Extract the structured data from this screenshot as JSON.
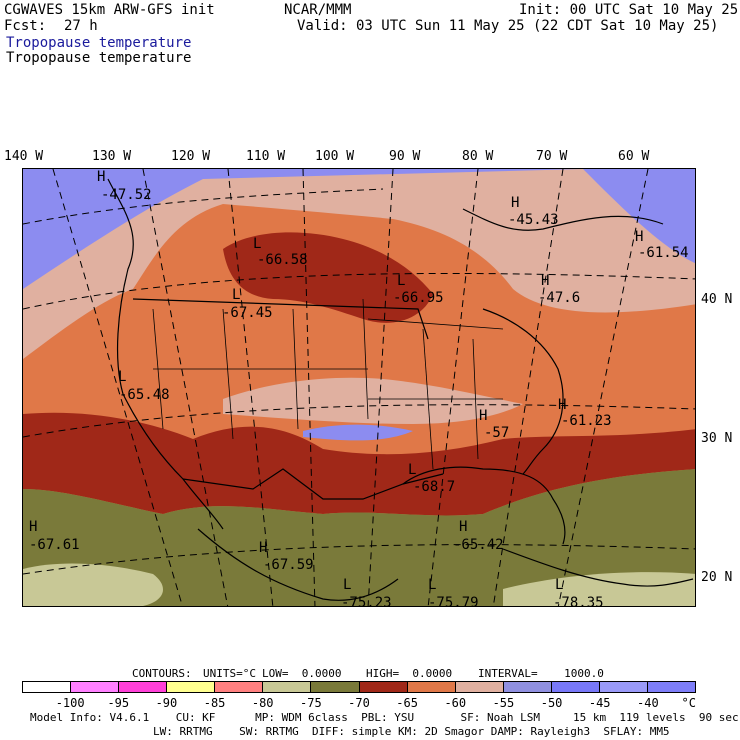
{
  "header": {
    "model": "CGWAVES 15km ARW-GFS init",
    "org": "NCAR/MMM",
    "init": "Init: 00 UTC Sat 10 May 25",
    "fcst_label": "Fcst:",
    "fcst_value": "27 h",
    "valid": "Valid: 03 UTC Sun 11 May 25 (22 CDT Sat 10 May 25)",
    "field_title_1": "Tropopause temperature",
    "field_title_2": "Tropopause temperature"
  },
  "longitude_labels": [
    "140 W",
    "130 W",
    "120 W",
    "110 W",
    "100 W",
    "90 W",
    "80 W",
    "70 W",
    "60 W"
  ],
  "latitude_labels": [
    "40 N",
    "30 N",
    "20 N"
  ],
  "map_labels": [
    {
      "type": "H",
      "value": "-47.52"
    },
    {
      "type": "H",
      "value": "-45.43"
    },
    {
      "type": "H",
      "value": "-61.54"
    },
    {
      "type": "L",
      "value": "-66.58"
    },
    {
      "type": "L",
      "value": "-66.95"
    },
    {
      "type": "H",
      "value": "-47.6"
    },
    {
      "type": "L",
      "value": "-67.45"
    },
    {
      "type": "L",
      "value": "-65.48"
    },
    {
      "type": "H",
      "value": "-61.23"
    },
    {
      "type": "H",
      "value": "-57"
    },
    {
      "type": "L",
      "value": "-68.7"
    },
    {
      "type": "H",
      "value": "-67.61"
    },
    {
      "type": "H",
      "value": "-67.59"
    },
    {
      "type": "H",
      "value": "-65.42"
    },
    {
      "type": "L",
      "value": "-75.23"
    },
    {
      "type": "L",
      "value": "-75.79"
    },
    {
      "type": "L",
      "value": "-78.35"
    }
  ],
  "contour_info": {
    "contours": "CONTOURS:",
    "units": "UNITS=°C",
    "low": "LOW=  0.0000",
    "high": "HIGH=  0.0000",
    "interval": "INTERVAL=    1000.0"
  },
  "colorbar": {
    "colors": [
      "#ffffff",
      "#ff80ff",
      "#ff40d8",
      "#ffff90",
      "#ff8080",
      "#c8c896",
      "#7a7a3a",
      "#a02818",
      "#e07848",
      "#e0b0a0",
      "#9090e0",
      "#7878f8",
      "#9a9af8",
      "#7e7ef8"
    ],
    "labels": [
      "-100",
      "-95",
      "-90",
      "-85",
      "-80",
      "-75",
      "-70",
      "-65",
      "-60",
      "-55",
      "-50",
      "-45",
      "-40",
      "°C"
    ]
  },
  "footer": {
    "line1": "Model Info: V4.6.1    CU: KF      MP: WDM 6class  PBL: YSU       SF: Noah LSM     15 km  119 levels  90 sec",
    "line2": "LW: RRTMG    SW: RRTMG  DIFF: simple KM: 2D Smagor DAMP: Rayleigh3  SFLAY: MM5"
  },
  "colors": {
    "map_lavender": "#8c8cf0",
    "map_pink": "#e0b0a0",
    "map_orange": "#e07848",
    "map_darkred": "#a02818",
    "map_olive": "#7a7a3a",
    "map_tan": "#c8c896",
    "title_blue": "#1a1a9c"
  }
}
